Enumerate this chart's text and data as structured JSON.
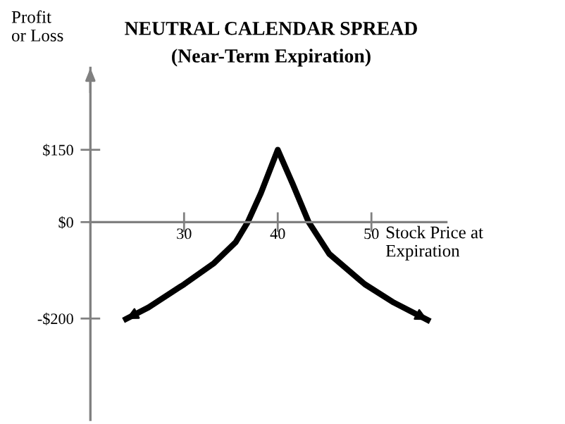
{
  "chart_data": {
    "type": "line",
    "title": "NEUTRAL CALENDAR SPREAD",
    "subtitle": "(Near-Term Expiration)",
    "xlabel": "Stock Price at\nExpiration",
    "ylabel": "Profit\nor Loss",
    "x": [
      23.8,
      26.2,
      30,
      33.2,
      35.5,
      36.8,
      38.2,
      40,
      41.6,
      43.3,
      45.5,
      49.3,
      52.4,
      56
    ],
    "series": [
      {
        "color": "#000000",
        "values": [
          -201,
          -177,
          -129,
          -85,
          -42,
          0,
          60,
          150,
          79,
          0,
          -66,
          -129,
          -167,
          -203
        ]
      }
    ],
    "xlim": [
      20,
      58
    ],
    "ylim": [
      -410,
      320
    ],
    "xticks": [
      30,
      40,
      50
    ],
    "yticks": [
      {
        "value": 150,
        "label": "$150"
      },
      {
        "value": 0,
        "label": "$0"
      },
      {
        "value": -200,
        "label": "-$200"
      }
    ],
    "grid": false,
    "legend": false,
    "marker": "none",
    "line_style": "solid"
  }
}
